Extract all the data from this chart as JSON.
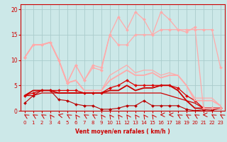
{
  "background_color": "#cce8e8",
  "grid_color": "#aacccc",
  "xlabel": "Vent moyen/en rafales ( km/h )",
  "xlim": [
    -0.5,
    23.5
  ],
  "ylim": [
    0,
    21
  ],
  "yticks": [
    0,
    5,
    10,
    15,
    20
  ],
  "xticks": [
    0,
    1,
    2,
    3,
    4,
    5,
    6,
    7,
    8,
    9,
    10,
    11,
    12,
    13,
    14,
    15,
    16,
    17,
    18,
    19,
    20,
    21,
    22,
    23
  ],
  "line_dark_marker1": {
    "x": [
      0,
      1,
      2,
      3,
      4,
      5,
      6,
      7,
      8,
      9,
      10,
      11,
      12,
      13,
      14,
      15,
      16,
      17,
      18,
      19,
      20,
      21,
      22,
      23
    ],
    "y": [
      1.5,
      3.0,
      4.0,
      4.0,
      2.2,
      2.0,
      1.3,
      1.0,
      1.0,
      0.3,
      0.3,
      0.5,
      1.0,
      1.0,
      2.0,
      1.0,
      1.0,
      1.0,
      1.0,
      0.3,
      0.0,
      0.2,
      0.1,
      0.5
    ],
    "color": "#bb0000",
    "lw": 0.8,
    "marker": "D",
    "ms": 2.0
  },
  "line_dark_flat": {
    "x": [
      0,
      1,
      2,
      3,
      4,
      5,
      6,
      7,
      8,
      9,
      10,
      11,
      12,
      13,
      14,
      15,
      16,
      17,
      18,
      19,
      20,
      21,
      22,
      23
    ],
    "y": [
      3.0,
      3.0,
      3.5,
      3.5,
      3.5,
      3.5,
      3.5,
      3.5,
      3.5,
      3.5,
      3.5,
      3.5,
      3.5,
      3.5,
      3.5,
      3.5,
      3.5,
      3.0,
      2.5,
      2.0,
      1.5,
      0.5,
      0.5,
      0.5
    ],
    "color": "#cc0000",
    "lw": 0.9,
    "marker": null,
    "ms": 0
  },
  "line_dark_marker2": {
    "x": [
      0,
      1,
      2,
      3,
      4,
      5,
      6,
      7,
      8,
      9,
      10,
      11,
      12,
      13,
      14,
      15,
      16,
      17,
      18,
      19,
      20,
      21,
      22,
      23
    ],
    "y": [
      3.0,
      3.5,
      4.0,
      4.0,
      4.0,
      4.0,
      4.0,
      3.5,
      3.5,
      3.5,
      4.5,
      5.0,
      6.0,
      5.0,
      5.0,
      5.0,
      5.0,
      5.0,
      4.5,
      3.0,
      2.0,
      0.5,
      0.5,
      0.5
    ],
    "color": "#dd0000",
    "lw": 0.9,
    "marker": "D",
    "ms": 2.0
  },
  "line_dark_thick": {
    "x": [
      0,
      1,
      2,
      3,
      4,
      5,
      6,
      7,
      8,
      9,
      10,
      11,
      12,
      13,
      14,
      15,
      16,
      17,
      18,
      19,
      20,
      21,
      22,
      23
    ],
    "y": [
      3.0,
      4.0,
      4.0,
      4.0,
      3.5,
      3.5,
      3.5,
      3.5,
      3.5,
      3.5,
      4.0,
      4.0,
      5.0,
      4.0,
      4.5,
      4.5,
      5.0,
      5.0,
      4.0,
      2.0,
      0.5,
      0.5,
      0.5,
      0.5
    ],
    "color": "#cc0000",
    "lw": 1.3,
    "marker": null,
    "ms": 0
  },
  "line_light_marker1": {
    "x": [
      0,
      1,
      2,
      3,
      4,
      5,
      6,
      7,
      8,
      9,
      10,
      11,
      12,
      13,
      14,
      15,
      16,
      17,
      18,
      19,
      20,
      21,
      22,
      23
    ],
    "y": [
      10.5,
      13.0,
      13.0,
      13.5,
      10.0,
      5.5,
      9.0,
      6.0,
      9.0,
      8.5,
      15.0,
      13.0,
      13.0,
      15.0,
      15.0,
      15.0,
      16.0,
      16.0,
      16.0,
      16.0,
      16.0,
      16.0,
      16.0,
      8.5
    ],
    "color": "#ffaaaa",
    "lw": 0.9,
    "marker": "D",
    "ms": 2.0
  },
  "line_light_flat": {
    "x": [
      0,
      1,
      2,
      3,
      4,
      5,
      6,
      7,
      8,
      9,
      10,
      11,
      12,
      13,
      14,
      15,
      16,
      17,
      18,
      19,
      20,
      21,
      22,
      23
    ],
    "y": [
      10.5,
      13.0,
      13.0,
      13.5,
      10.0,
      5.5,
      6.0,
      4.0,
      4.0,
      4.0,
      7.0,
      8.0,
      9.0,
      7.5,
      8.0,
      8.0,
      7.0,
      7.5,
      7.0,
      5.0,
      2.5,
      2.5,
      2.5,
      1.0
    ],
    "color": "#ffaaaa",
    "lw": 0.9,
    "marker": null,
    "ms": 0
  },
  "line_light_marker2": {
    "x": [
      0,
      1,
      2,
      3,
      4,
      5,
      6,
      7,
      8,
      9,
      10,
      11,
      12,
      13,
      14,
      15,
      16,
      17,
      18,
      19,
      20,
      21,
      22,
      23
    ],
    "y": [
      10.5,
      13.0,
      13.0,
      13.5,
      10.0,
      5.5,
      9.0,
      6.0,
      8.5,
      8.0,
      15.0,
      18.5,
      16.0,
      19.5,
      18.0,
      15.0,
      19.5,
      18.0,
      16.0,
      15.5,
      16.5,
      0.5,
      0.5,
      0.5
    ],
    "color": "#ffaaaa",
    "lw": 0.9,
    "marker": "D",
    "ms": 2.0
  },
  "line_light_thick": {
    "x": [
      0,
      1,
      2,
      3,
      4,
      5,
      6,
      7,
      8,
      9,
      10,
      11,
      12,
      13,
      14,
      15,
      16,
      17,
      18,
      19,
      20,
      21,
      22,
      23
    ],
    "y": [
      10.5,
      13.0,
      13.0,
      13.5,
      10.0,
      5.5,
      6.0,
      4.0,
      4.0,
      4.0,
      6.0,
      7.0,
      8.0,
      7.0,
      7.0,
      7.5,
      6.5,
      7.0,
      7.0,
      5.0,
      2.0,
      2.0,
      2.0,
      1.0
    ],
    "color": "#ffaaaa",
    "lw": 1.3,
    "marker": null,
    "ms": 0
  },
  "arrow_angles": [
    225,
    225,
    225,
    202,
    248,
    225,
    202,
    225,
    225,
    202,
    202,
    202,
    202,
    202,
    202,
    202,
    270,
    270,
    225,
    225,
    225,
    270,
    225,
    225
  ],
  "xlabel_fontsize": 5.5,
  "tick_fontsize": 5,
  "ytick_fontsize": 5.5
}
